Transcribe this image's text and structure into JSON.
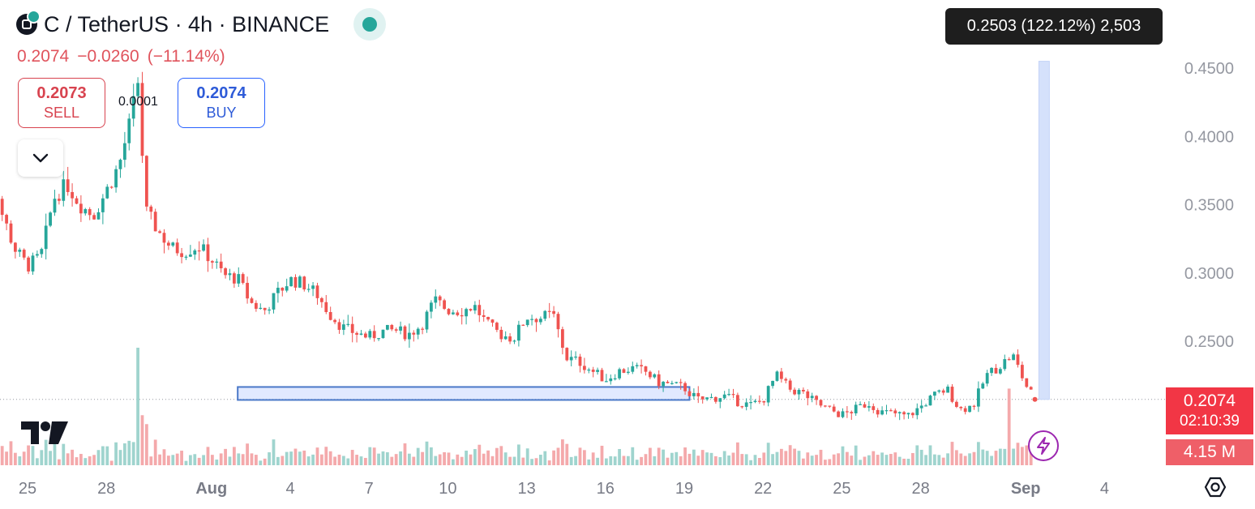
{
  "header": {
    "title": "C / TetherUS · 4h · BINANCE",
    "last_price": "0.2074",
    "change": "−0.0260",
    "change_pct": "(−11.14%)"
  },
  "trade": {
    "sell_price": "0.2073",
    "sell_label": "SELL",
    "buy_price": "0.2074",
    "buy_label": "BUY",
    "spread": "0.0001"
  },
  "tooltip": {
    "text": "0.2503 (122.12%) 2,503"
  },
  "price_badge": {
    "price": "0.2074",
    "countdown": "02:10:39"
  },
  "volume_badge": {
    "value": "4.15 M"
  },
  "colors": {
    "up": "#26a69a",
    "down": "#ef5350",
    "up_volume": "#9fd4ce",
    "down_volume": "#f4a9ab",
    "accent": "#2962ff"
  },
  "icons": {
    "collapse": "chevron-down-icon",
    "logo": "tradingview-logo",
    "replay": "lightning-icon",
    "settings": "settings-icon"
  },
  "chart_data": {
    "type": "candlestick",
    "interval": "4h",
    "y_ticks": [
      "0.4500",
      "0.4000",
      "0.3500",
      "0.3000",
      "0.2500"
    ],
    "ylim": [
      0.187,
      0.4735
    ],
    "x_ticks": [
      {
        "label": "25",
        "day": 25
      },
      {
        "label": "28",
        "day": 28
      },
      {
        "label": "Aug",
        "day": 32
      },
      {
        "label": "4",
        "day": 35
      },
      {
        "label": "7",
        "day": 38
      },
      {
        "label": "10",
        "day": 41
      },
      {
        "label": "13",
        "day": 44
      },
      {
        "label": "16",
        "day": 47
      },
      {
        "label": "19",
        "day": 50
      },
      {
        "label": "22",
        "day": 53
      },
      {
        "label": "25",
        "day": 56
      },
      {
        "label": "28",
        "day": 59
      },
      {
        "label": "Sep",
        "day": 63
      },
      {
        "label": "4",
        "day": 66
      }
    ],
    "close_anchors": [
      [
        23.2,
        0.42
      ],
      [
        23.6,
        0.385
      ],
      [
        24.0,
        0.345
      ],
      [
        24.5,
        0.318
      ],
      [
        25.0,
        0.305
      ],
      [
        25.5,
        0.312
      ],
      [
        26.0,
        0.355
      ],
      [
        26.5,
        0.365
      ],
      [
        27.0,
        0.35
      ],
      [
        27.5,
        0.342
      ],
      [
        28.0,
        0.36
      ],
      [
        28.5,
        0.38
      ],
      [
        28.9,
        0.41
      ],
      [
        29.2,
        0.44
      ],
      [
        29.5,
        0.345
      ],
      [
        30.0,
        0.33
      ],
      [
        30.5,
        0.318
      ],
      [
        31.0,
        0.316
      ],
      [
        31.5,
        0.32
      ],
      [
        32.0,
        0.31
      ],
      [
        32.5,
        0.298
      ],
      [
        33.0,
        0.296
      ],
      [
        33.5,
        0.278
      ],
      [
        34.0,
        0.272
      ],
      [
        34.5,
        0.285
      ],
      [
        35.0,
        0.295
      ],
      [
        35.5,
        0.292
      ],
      [
        36.0,
        0.285
      ],
      [
        36.5,
        0.27
      ],
      [
        37.0,
        0.26
      ],
      [
        37.5,
        0.256
      ],
      [
        38.0,
        0.253
      ],
      [
        38.5,
        0.257
      ],
      [
        39.0,
        0.258
      ],
      [
        39.5,
        0.255
      ],
      [
        40.0,
        0.262
      ],
      [
        40.5,
        0.28
      ],
      [
        41.0,
        0.273
      ],
      [
        41.5,
        0.272
      ],
      [
        42.0,
        0.276
      ],
      [
        42.5,
        0.262
      ],
      [
        43.0,
        0.255
      ],
      [
        43.5,
        0.252
      ],
      [
        44.0,
        0.268
      ],
      [
        44.5,
        0.267
      ],
      [
        45.0,
        0.27
      ],
      [
        45.5,
        0.238
      ],
      [
        46.0,
        0.235
      ],
      [
        46.5,
        0.228
      ],
      [
        47.0,
        0.222
      ],
      [
        47.5,
        0.228
      ],
      [
        48.0,
        0.23
      ],
      [
        48.5,
        0.228
      ],
      [
        49.0,
        0.22
      ],
      [
        49.5,
        0.218
      ],
      [
        50.0,
        0.216
      ],
      [
        50.5,
        0.207
      ],
      [
        51.0,
        0.208
      ],
      [
        51.5,
        0.21
      ],
      [
        52.0,
        0.206
      ],
      [
        52.5,
        0.203
      ],
      [
        53.0,
        0.207
      ],
      [
        53.5,
        0.225
      ],
      [
        54.0,
        0.215
      ],
      [
        54.5,
        0.212
      ],
      [
        55.0,
        0.205
      ],
      [
        55.5,
        0.2
      ],
      [
        56.0,
        0.196
      ],
      [
        56.5,
        0.2
      ],
      [
        57.0,
        0.205
      ],
      [
        57.5,
        0.198
      ],
      [
        58.0,
        0.197
      ],
      [
        58.5,
        0.195
      ],
      [
        59.0,
        0.202
      ],
      [
        59.5,
        0.21
      ],
      [
        60.0,
        0.215
      ],
      [
        60.5,
        0.2
      ],
      [
        61.0,
        0.203
      ],
      [
        61.5,
        0.225
      ],
      [
        62.0,
        0.232
      ],
      [
        62.5,
        0.24
      ],
      [
        63.0,
        0.218
      ],
      [
        63.35,
        0.2074
      ]
    ],
    "horizontal_zone": {
      "day_start": 33.0,
      "day_end": 50.2,
      "price_low": 0.207,
      "price_high": 0.2165
    },
    "highlight_band": {
      "day_start": 63.5,
      "day_end": 63.9,
      "price_low": 0.2074,
      "price_high": 0.455
    },
    "current_price": 0.2074,
    "volume_max": 4.6
  }
}
